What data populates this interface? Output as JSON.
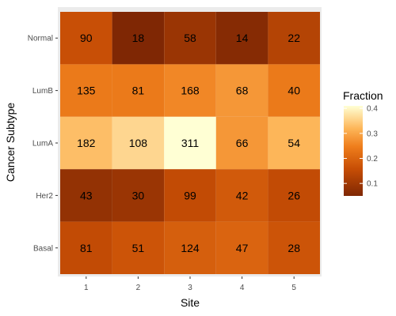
{
  "chart_data": {
    "type": "heatmap",
    "xlabel": "Site",
    "ylabel": "Cancer Subtype",
    "x_categories": [
      "1",
      "2",
      "3",
      "4",
      "5"
    ],
    "y_categories": [
      "Normal",
      "LumB",
      "LumA",
      "Her2",
      "Basal"
    ],
    "counts": [
      [
        90,
        18,
        58,
        14,
        22
      ],
      [
        135,
        81,
        168,
        68,
        40
      ],
      [
        182,
        108,
        311,
        66,
        54
      ],
      [
        43,
        30,
        99,
        42,
        26
      ],
      [
        81,
        51,
        124,
        47,
        28
      ]
    ],
    "fill_values": [
      [
        0.16,
        0.05,
        0.09,
        0.06,
        0.13
      ],
      [
        0.24,
        0.24,
        0.26,
        0.28,
        0.24
      ],
      [
        0.33,
        0.36,
        0.41,
        0.28,
        0.32
      ],
      [
        0.08,
        0.09,
        0.15,
        0.18,
        0.15
      ],
      [
        0.15,
        0.17,
        0.19,
        0.2,
        0.17
      ]
    ],
    "legend": {
      "title": "Fraction",
      "ticks": [
        "0.1",
        "0.2",
        "0.3",
        "0.4"
      ],
      "tick_values": [
        0.1,
        0.2,
        0.3,
        0.4
      ],
      "range": [
        0.05,
        0.41
      ],
      "placement": "right"
    },
    "colors": {
      "low": "#7f2704",
      "mid_low": "#c74e05",
      "mid": "#ef7e1c",
      "mid_high": "#fdb659",
      "high": "#ffffd4",
      "panel_background": "#ebebeb"
    }
  }
}
